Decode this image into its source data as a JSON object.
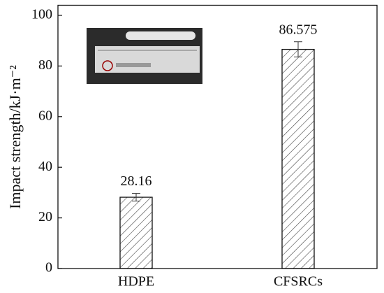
{
  "chart_data": {
    "type": "bar",
    "y_label": "Impact strength/kJ·m⁻²",
    "categories": [
      "HDPE",
      "CFSRCs"
    ],
    "values": [
      28.16,
      86.575
    ],
    "errors": [
      1.5,
      3
    ],
    "color": "#ffffff",
    "ylim": [
      0,
      104
    ],
    "yticks": [
      0,
      20,
      40,
      60,
      80,
      100
    ],
    "grid": false
  }
}
